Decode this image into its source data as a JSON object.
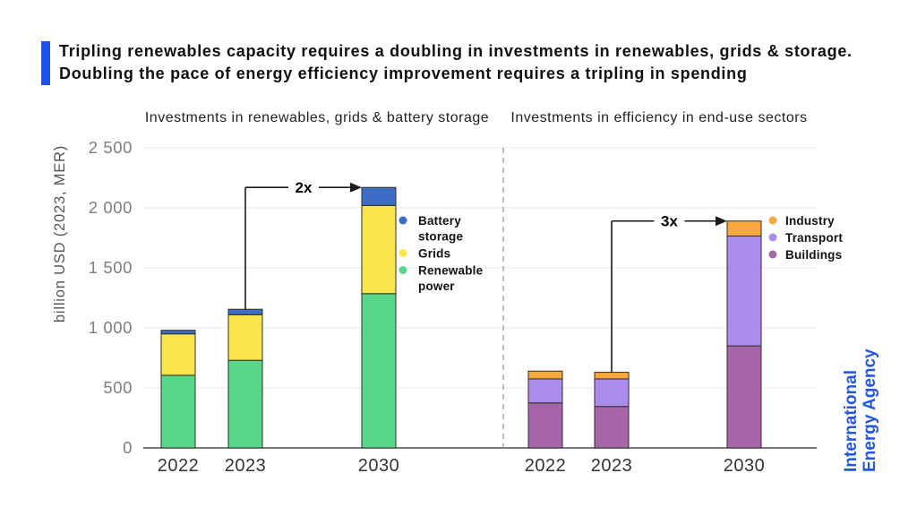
{
  "header": {
    "accent_color": "#1d53e8",
    "title_line1": "Tripling renewables capacity requires a doubling in investments in renewables, grids & storage.",
    "title_line2": "Doubling the pace of energy efficiency improvement requires a tripling in spending"
  },
  "brand": {
    "line1": "International",
    "line2": "Energy Agency",
    "color": "#2456e4"
  },
  "chart_data": {
    "type": "bar",
    "stacked": true,
    "ylabel": "billion USD (2023, MER)",
    "ylim": [
      0,
      2500
    ],
    "yticks": [
      0,
      500,
      1000,
      1500,
      2000,
      2500
    ],
    "ytick_labels": [
      "0",
      "500",
      "1 000",
      "1 500",
      "2 000",
      "2 500"
    ],
    "grid": true,
    "panels": [
      {
        "title": "Investments in renewables, grids & battery storage",
        "categories": [
          "2022",
          "2023",
          "2030"
        ],
        "series": [
          {
            "name": "Renewable power",
            "color": "#57d787",
            "values": [
              605,
              730,
              1285
            ]
          },
          {
            "name": "Grids",
            "color": "#fbe54e",
            "values": [
              345,
              380,
              735
            ]
          },
          {
            "name": "Battery storage",
            "color": "#3c6ec6",
            "values": [
              30,
              45,
              150
            ]
          }
        ],
        "annotation": {
          "label": "2x",
          "from_category": "2023",
          "to_category": "2030"
        },
        "legend": [
          "Battery storage",
          "Grids",
          "Renewable power"
        ]
      },
      {
        "title": "Investments in efficiency in end-use sectors",
        "categories": [
          "2022",
          "2023",
          "2030"
        ],
        "series": [
          {
            "name": "Buildings",
            "color": "#a766a8",
            "values": [
              375,
              345,
              850
            ]
          },
          {
            "name": "Transport",
            "color": "#aa8ceb",
            "values": [
              200,
              230,
              915
            ]
          },
          {
            "name": "Industry",
            "color": "#f8a93d",
            "values": [
              65,
              55,
              125
            ]
          }
        ],
        "annotation": {
          "label": "3x",
          "from_category": "2023",
          "to_category": "2030"
        },
        "legend": [
          "Industry",
          "Transport",
          "Buildings"
        ]
      }
    ]
  }
}
